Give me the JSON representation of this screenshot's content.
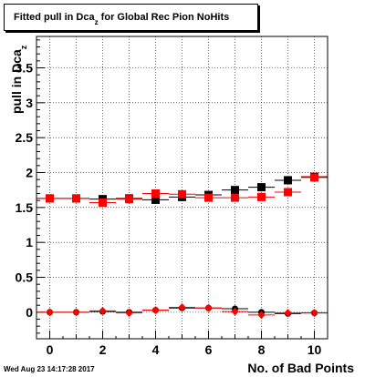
{
  "title": {
    "prefix": "Fitted pull in Dca",
    "sub": "z",
    "suffix": " for Global Rec Pion NoHits"
  },
  "ylabel": {
    "prefix": "pull in Dca",
    "sub": "z"
  },
  "xlabel": "No. of Bad Points",
  "timestamp": "Wed Aug 23 14:17:28 2017",
  "colors": {
    "black_series": "#000000",
    "red_series": "#ff0000",
    "frame": "#000000",
    "grid": "#000000"
  },
  "chart_data": {
    "type": "scatter",
    "xlim": [
      -0.5,
      10.5
    ],
    "ylim": [
      -0.38,
      3.95
    ],
    "grid": true,
    "x_ticks": [
      0,
      2,
      4,
      6,
      8,
      10
    ],
    "x_tick_labels": [
      "0",
      "2",
      "4",
      "6",
      "8",
      "10"
    ],
    "y_ticks": [
      0,
      0.5,
      1,
      1.5,
      2,
      2.5,
      3,
      3.5
    ],
    "y_tick_labels": [
      "0",
      "0.5",
      "1",
      "1.5",
      "2",
      "2.5",
      "3",
      "3.5"
    ],
    "series": [
      {
        "marker": "square",
        "color": "#000000",
        "x": [
          0,
          1,
          2,
          3,
          4,
          5,
          6,
          7,
          8,
          9,
          10
        ],
        "y": [
          1.63,
          1.63,
          1.62,
          1.63,
          1.61,
          1.65,
          1.68,
          1.75,
          1.79,
          1.89,
          1.94
        ]
      },
      {
        "marker": "square",
        "color": "#ff0000",
        "x": [
          0,
          1,
          2,
          3,
          4,
          5,
          6,
          7,
          8,
          9,
          10
        ],
        "y": [
          1.63,
          1.63,
          1.57,
          1.62,
          1.7,
          1.69,
          1.64,
          1.64,
          1.65,
          1.72,
          1.93
        ]
      },
      {
        "marker": "circle",
        "color": "#000000",
        "x": [
          0,
          1,
          2,
          3,
          4,
          5,
          6,
          7,
          8,
          9,
          10
        ],
        "y": [
          0.0,
          0.0,
          0.01,
          0.0,
          0.03,
          0.06,
          0.06,
          0.05,
          0.0,
          -0.02,
          -0.01
        ]
      },
      {
        "marker": "diamond",
        "color": "#ff0000",
        "x": [
          0,
          1,
          2,
          3,
          4,
          5,
          6,
          7,
          8,
          9,
          10
        ],
        "y": [
          0.0,
          0.0,
          0.02,
          -0.01,
          0.03,
          0.07,
          0.06,
          0.01,
          -0.04,
          -0.01,
          -0.01
        ]
      }
    ]
  }
}
